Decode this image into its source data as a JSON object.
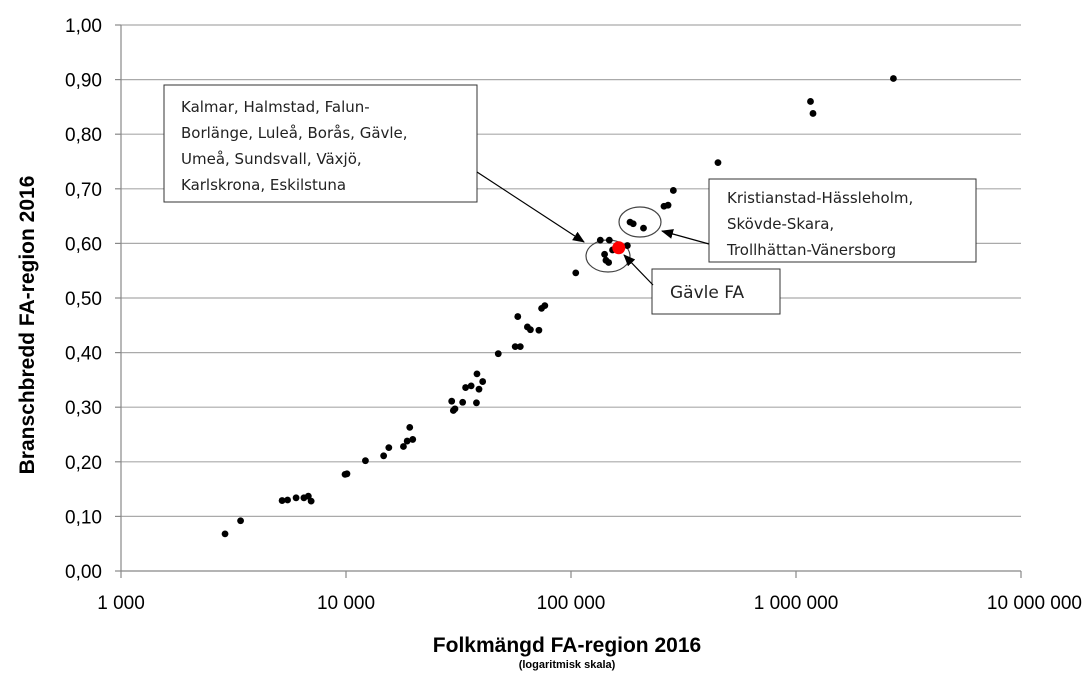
{
  "chart_data": {
    "type": "scatter",
    "xlabel": "Folkmängd FA-region 2016",
    "xlabel_note": "(logaritmisk skala)",
    "ylabel": "Branschbredd FA-region 2016",
    "x_scale": "log",
    "xlim": [
      1000,
      10000000
    ],
    "ylim": [
      0,
      1.0
    ],
    "x_ticks": [
      1000,
      10000,
      100000,
      1000000,
      10000000
    ],
    "x_tick_labels": [
      "1 000",
      "10 000",
      "100 000",
      "1 000 000",
      "10 000 000"
    ],
    "y_ticks": [
      0,
      0.1,
      0.2,
      0.3,
      0.4,
      0.5,
      0.6,
      0.7,
      0.8,
      0.9,
      1.0
    ],
    "y_tick_labels": [
      "0,00",
      "0,10",
      "0,20",
      "0,30",
      "0,40",
      "0,50",
      "0,60",
      "0,70",
      "0,80",
      "0,90",
      "1,00"
    ],
    "grid": "horizontal",
    "colors": {
      "points": "#000000",
      "highlight": "#ff0000",
      "grid": "#aaaaaa"
    },
    "points": [
      [
        2900,
        0.068
      ],
      [
        3400,
        0.092
      ],
      [
        5200,
        0.129
      ],
      [
        5500,
        0.13
      ],
      [
        6000,
        0.134
      ],
      [
        6500,
        0.134
      ],
      [
        6800,
        0.137
      ],
      [
        7000,
        0.128
      ],
      [
        9900,
        0.177
      ],
      [
        10100,
        0.178
      ],
      [
        12200,
        0.202
      ],
      [
        14700,
        0.211
      ],
      [
        15500,
        0.226
      ],
      [
        18000,
        0.228
      ],
      [
        18700,
        0.238
      ],
      [
        19200,
        0.263
      ],
      [
        19800,
        0.241
      ],
      [
        29500,
        0.311
      ],
      [
        30000,
        0.294
      ],
      [
        30500,
        0.297
      ],
      [
        33000,
        0.309
      ],
      [
        34000,
        0.336
      ],
      [
        36000,
        0.339
      ],
      [
        38000,
        0.308
      ],
      [
        38200,
        0.361
      ],
      [
        39000,
        0.333
      ],
      [
        40500,
        0.347
      ],
      [
        47500,
        0.398
      ],
      [
        56500,
        0.411
      ],
      [
        58000,
        0.466
      ],
      [
        59500,
        0.411
      ],
      [
        64000,
        0.447
      ],
      [
        66000,
        0.442
      ],
      [
        72000,
        0.441
      ],
      [
        74000,
        0.481
      ],
      [
        76500,
        0.486
      ],
      [
        105000,
        0.546
      ],
      [
        135000,
        0.606
      ],
      [
        141000,
        0.58
      ],
      [
        143000,
        0.569
      ],
      [
        147000,
        0.565
      ],
      [
        148000,
        0.606
      ],
      [
        153000,
        0.588
      ],
      [
        160000,
        0.594
      ],
      [
        178000,
        0.596
      ],
      [
        183000,
        0.639
      ],
      [
        189000,
        0.636
      ],
      [
        210000,
        0.628
      ],
      [
        259000,
        0.668
      ],
      [
        270000,
        0.67
      ],
      [
        285000,
        0.697
      ],
      [
        450000,
        0.748
      ],
      [
        1160000,
        0.86
      ],
      [
        1190000,
        0.838
      ],
      [
        2710000,
        0.902
      ]
    ],
    "highlight": {
      "x": 163000,
      "y": 0.592,
      "label": "Gävle FA"
    },
    "annotations": [
      "Kalmar, Halmstad, Falun-Borlänge, Luleå, Borås, Gävle, Umeå, Sundsvall, Växjö, Karlskrona, Eskilstuna",
      "Kristianstad-Hässleholm, Skövde-Skara, Trollhättan-Vänersborg",
      "Gävle FA"
    ]
  },
  "callouts": {
    "cluster_a_lines": [
      "Kalmar, Halmstad, Falun-",
      "Borlänge, Luleå, Borås, Gävle,",
      "Umeå, Sundsvall, Växjö,",
      "Karlskrona, Eskilstuna"
    ],
    "cluster_b_lines": [
      "Kristianstad-Hässleholm,",
      "Skövde-Skara,",
      "Trollhättan-Vänersborg"
    ],
    "gavle": "Gävle FA"
  }
}
